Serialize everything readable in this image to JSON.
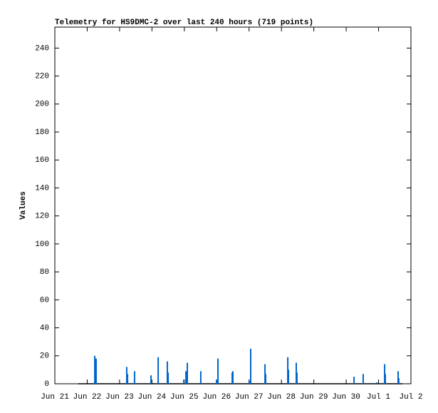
{
  "chart_data": {
    "type": "impulse",
    "title": "Telemetry for HS9DMC-2 over last 240 hours (719 points)",
    "y_label": "Values",
    "series": [
      {
        "color": "#0066cc",
        "x": [
          17.4,
          29.6,
          30.6,
          53.3,
          53.9,
          59.1,
          71.3,
          76.6,
          83.4,
          84.0,
          95.6,
          97.2,
          98.2,
          108.2,
          119.9,
          120.9,
          131.5,
          132.0,
          144.1,
          145.2,
          155.8,
          156.3,
          172.7,
          173.2,
          179.0,
          179.5,
          221.8,
          228.6,
          238.7,
          244.5,
          245.0,
          254.5,
          255.0,
          257.7
        ],
        "values": [
          0,
          20,
          18,
          12,
          7,
          9,
          6,
          19,
          16,
          8,
          3,
          9,
          15,
          9,
          3,
          18,
          8,
          9,
          2,
          25,
          14,
          7,
          19,
          10,
          15,
          8,
          5,
          7,
          1,
          14,
          7,
          9,
          4,
          0
        ]
      }
    ],
    "xlim": [
      0,
      264
    ],
    "xticks": [
      {
        "value": 0,
        "label": "Jun 21"
      },
      {
        "value": 24,
        "label": "Jun 22"
      },
      {
        "value": 48,
        "label": "Jun 23"
      },
      {
        "value": 72,
        "label": "Jun 24"
      },
      {
        "value": 96,
        "label": "Jun 25"
      },
      {
        "value": 120,
        "label": "Jun 26"
      },
      {
        "value": 144,
        "label": "Jun 27"
      },
      {
        "value": 168,
        "label": "Jun 28"
      },
      {
        "value": 192,
        "label": "Jun 29"
      },
      {
        "value": 216,
        "label": "Jun 30"
      },
      {
        "value": 240,
        "label": "Jul 1"
      },
      {
        "value": 264,
        "label": "Jul 2"
      }
    ],
    "ylim": [
      0,
      255
    ],
    "yticks": [
      0,
      20,
      40,
      60,
      80,
      100,
      120,
      140,
      160,
      180,
      200,
      220,
      240
    ]
  }
}
